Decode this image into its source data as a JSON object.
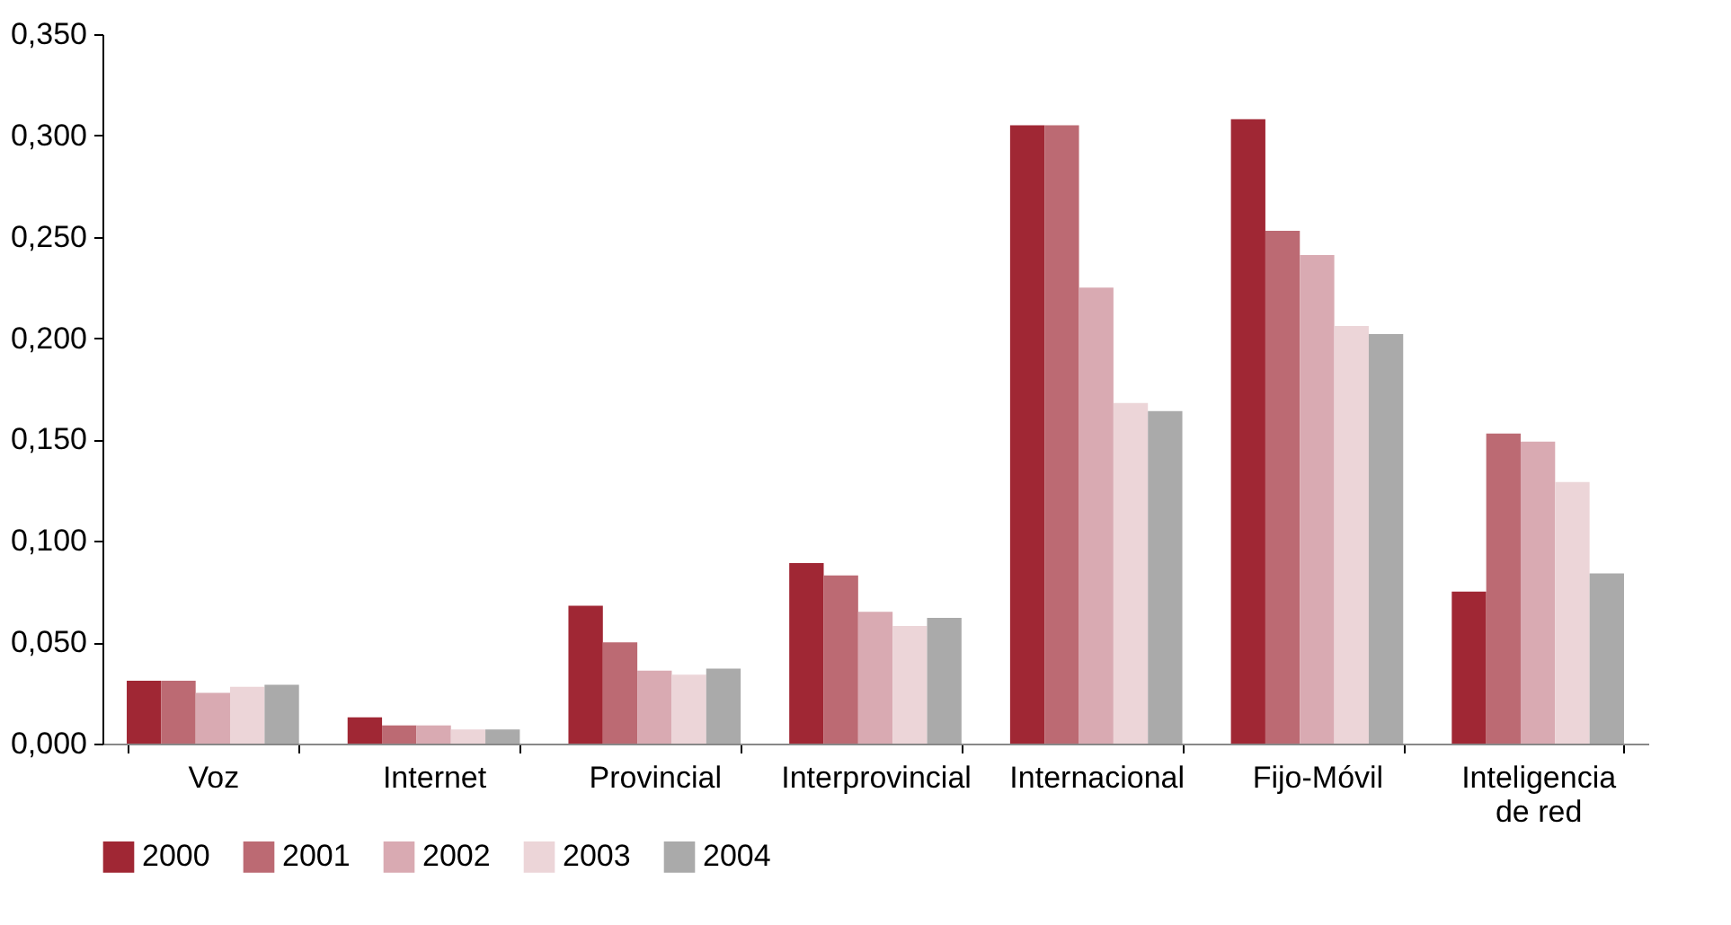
{
  "chart_data": {
    "type": "bar",
    "categories": [
      "Voz",
      "Internet",
      "Provincial",
      "Interprovincial",
      "Internacional",
      "Fijo-Móvil",
      "Inteligencia de red"
    ],
    "series": [
      {
        "name": "2000",
        "color": "#a02734",
        "values": [
          0.031,
          0.013,
          0.068,
          0.089,
          0.305,
          0.308,
          0.075
        ]
      },
      {
        "name": "2001",
        "color": "#bc6a73",
        "values": [
          0.031,
          0.009,
          0.05,
          0.083,
          0.305,
          0.253,
          0.153
        ]
      },
      {
        "name": "2002",
        "color": "#d9aab2",
        "values": [
          0.025,
          0.009,
          0.036,
          0.065,
          0.225,
          0.241,
          0.149
        ]
      },
      {
        "name": "2003",
        "color": "#ecd5d8",
        "values": [
          0.028,
          0.007,
          0.034,
          0.058,
          0.168,
          0.206,
          0.129
        ]
      },
      {
        "name": "2004",
        "color": "#aaaaaa",
        "values": [
          0.029,
          0.007,
          0.037,
          0.062,
          0.164,
          0.202,
          0.084
        ]
      }
    ],
    "ylim": [
      0,
      0.35
    ],
    "yticks": [
      {
        "value": 0,
        "label": "0,000"
      },
      {
        "value": 0.05,
        "label": "0,050"
      },
      {
        "value": 0.1,
        "label": "0,100"
      },
      {
        "value": 0.15,
        "label": "0,150"
      },
      {
        "value": 0.2,
        "label": "0,200"
      },
      {
        "value": 0.25,
        "label": "0,250"
      },
      {
        "value": 0.3,
        "label": "0,300"
      },
      {
        "value": 0.35,
        "label": "0,350"
      }
    ],
    "grid": false,
    "legend": "bottom"
  }
}
